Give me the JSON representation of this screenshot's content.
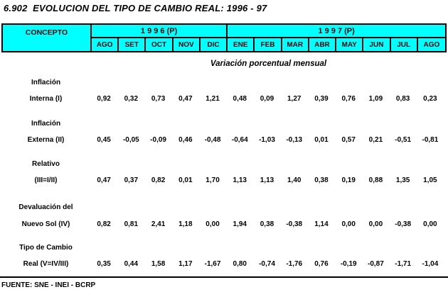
{
  "title": "6.902  EVOLUCION DEL TIPO DE CAMBIO REAL: 1996 - 97",
  "table": {
    "concept_header": "CONCEPTO",
    "year_groups": [
      {
        "label": "1 9 9 6 (P)",
        "span": 5
      },
      {
        "label": "1 9 9 7 (P)",
        "span": 8
      }
    ],
    "months": [
      "AGO",
      "SET",
      "OCT",
      "NOV",
      "DIC",
      "ENE",
      "FEB",
      "MAR",
      "ABR",
      "MAY",
      "JUN",
      "JUL",
      "AGO"
    ],
    "subtitle": "Variación porcentual mensual",
    "rows": [
      {
        "label_line1": "Inflación",
        "label_line2": "Interna (I)",
        "values": [
          "0,92",
          "0,32",
          "0,73",
          "0,47",
          "1,21",
          "0,48",
          "0,09",
          "1,27",
          "0,39",
          "0,76",
          "1,09",
          "0,83",
          "0,23"
        ]
      },
      {
        "label_line1": "Inflación",
        "label_line2": "Externa (II)",
        "values": [
          "0,45",
          "-0,05",
          "-0,09",
          "0,46",
          "-0,48",
          "-0,64",
          "-1,03",
          "-0,13",
          "0,01",
          "0,57",
          "0,21",
          "-0,51",
          "-0,81"
        ]
      },
      {
        "label_line1": "Relativo",
        "label_line2": "(III=I/II)",
        "values": [
          "0,47",
          "0,37",
          "0,82",
          "0,01",
          "1,70",
          "1,13",
          "1,13",
          "1,40",
          "0,38",
          "0,19",
          "0,88",
          "1,35",
          "1,05"
        ]
      },
      {
        "label_line1": "Devaluación del",
        "label_line2": "Nuevo Sol (IV)",
        "values": [
          "0,82",
          "0,81",
          "2,41",
          "1,18",
          "0,00",
          "1,94",
          "0,38",
          "-0,38",
          "1,14",
          "0,00",
          "0,00",
          "-0,38",
          "0,00"
        ]
      },
      {
        "label_line1": "Tipo de Cambio",
        "label_line2": "Real (V=IV/III)",
        "values": [
          "0,35",
          "0,44",
          "1,58",
          "1,17",
          "-1,67",
          "0,80",
          "-0,74",
          "-1,76",
          "0,76",
          "-0,19",
          "-0,87",
          "-1,71",
          "-1,04"
        ]
      }
    ]
  },
  "footer": "FUENTE: SNE - INEI - BCRP",
  "colors": {
    "header_bg": "#00FFFF",
    "border": "#000000",
    "text": "#000000"
  }
}
